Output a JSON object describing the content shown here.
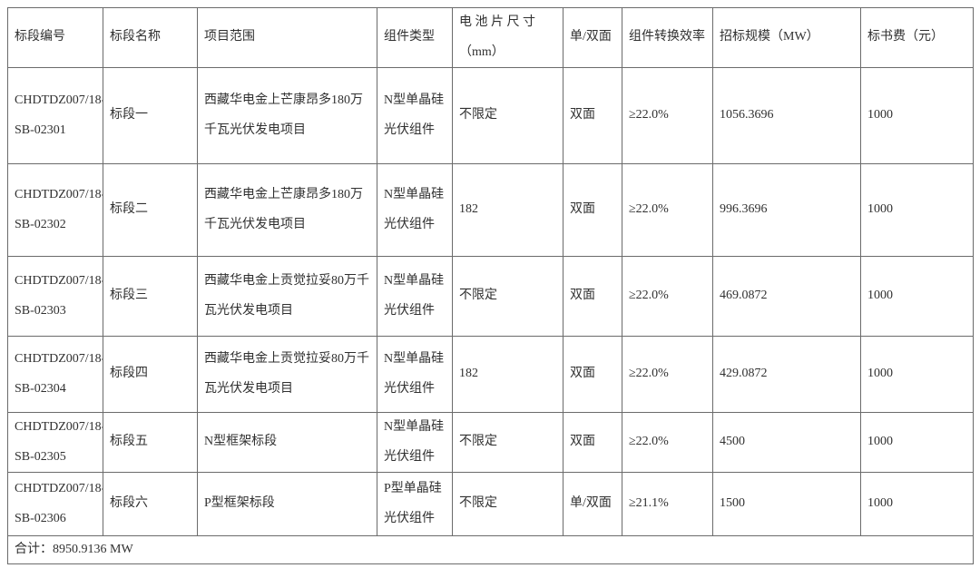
{
  "table": {
    "headers": [
      [
        "标段编号"
      ],
      [
        "标段名称"
      ],
      [
        "项目范围"
      ],
      [
        "组件类型"
      ],
      [
        "电 池 片 尺 寸",
        "（mm）"
      ],
      [
        "单/双面"
      ],
      [
        "组件转换效率"
      ],
      [
        "招标规模（MW）"
      ],
      [
        "标书费（元）"
      ]
    ],
    "rows": [
      {
        "section_id": [
          "CHDTDZ007/18-",
          "SB-02301"
        ],
        "section_name": "标段一",
        "project_scope": [
          "西藏华电金上芒康昂多180万",
          "千瓦光伏发电项目"
        ],
        "module_type": [
          "N型单晶硅",
          "光伏组件"
        ],
        "cell_size": "不限定",
        "faces": "双面",
        "efficiency": "≥22.0%",
        "scale_mw": "1056.3696",
        "doc_fee": "1000"
      },
      {
        "section_id": [
          "CHDTDZ007/18-",
          "SB-02302"
        ],
        "section_name": "标段二",
        "project_scope": [
          "西藏华电金上芒康昂多180万",
          "千瓦光伏发电项目"
        ],
        "module_type": [
          "N型单晶硅",
          "光伏组件"
        ],
        "cell_size": "182",
        "faces": "双面",
        "efficiency": "≥22.0%",
        "scale_mw": "996.3696",
        "doc_fee": "1000"
      },
      {
        "section_id": [
          "CHDTDZ007/18-",
          "SB-02303"
        ],
        "section_name": "标段三",
        "project_scope": [
          "西藏华电金上贡觉拉妥80万千",
          "瓦光伏发电项目"
        ],
        "module_type": [
          "N型单晶硅",
          "光伏组件"
        ],
        "cell_size": "不限定",
        "faces": "双面",
        "efficiency": "≥22.0%",
        "scale_mw": "469.0872",
        "doc_fee": "1000"
      },
      {
        "section_id": [
          "CHDTDZ007/18-",
          "SB-02304"
        ],
        "section_name": "标段四",
        "project_scope": [
          "西藏华电金上贡觉拉妥80万千",
          "瓦光伏发电项目"
        ],
        "module_type": [
          "N型单晶硅",
          "光伏组件"
        ],
        "cell_size": "182",
        "faces": "双面",
        "efficiency": "≥22.0%",
        "scale_mw": "429.0872",
        "doc_fee": "1000"
      },
      {
        "section_id": [
          "CHDTDZ007/18-",
          "SB-02305"
        ],
        "section_name": "标段五",
        "project_scope": [
          "N型框架标段"
        ],
        "module_type": [
          "N型单晶硅",
          "光伏组件"
        ],
        "cell_size": "不限定",
        "faces": "双面",
        "efficiency": "≥22.0%",
        "scale_mw": "4500",
        "doc_fee": "1000"
      },
      {
        "section_id": [
          "CHDTDZ007/18-",
          "SB-02306"
        ],
        "section_name": "标段六",
        "project_scope": [
          "P型框架标段"
        ],
        "module_type": [
          "P型单晶硅",
          "光伏组件"
        ],
        "cell_size": "不限定",
        "faces": "单/双面",
        "efficiency": "≥21.1%",
        "scale_mw": "1500",
        "doc_fee": "1000"
      }
    ],
    "total_label": "合计：8950.9136 MW"
  }
}
